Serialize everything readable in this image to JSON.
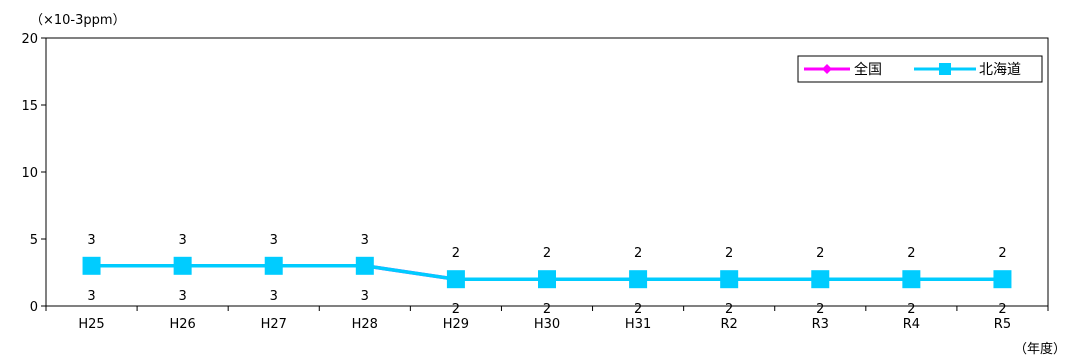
{
  "chart_data": {
    "type": "line",
    "y_unit_label": "（×10-3ppm）",
    "x_unit_label": "（年度）",
    "categories": [
      "H25",
      "H26",
      "H27",
      "H28",
      "H29",
      "H30",
      "H31",
      "R2",
      "R3",
      "R4",
      "R5"
    ],
    "ylim": [
      0,
      20
    ],
    "yticks": [
      0,
      5,
      10,
      15,
      20
    ],
    "grid": false,
    "legend_position": "top-right",
    "series": [
      {
        "name": "全国",
        "color": "#ff00ff",
        "marker": "diamond",
        "values": [
          3,
          3,
          3,
          3,
          2,
          2,
          2,
          2,
          2,
          2,
          2
        ],
        "label_position": "below"
      },
      {
        "name": "北海道",
        "color": "#00ccff",
        "marker": "square",
        "values": [
          3,
          3,
          3,
          3,
          2,
          2,
          2,
          2,
          2,
          2,
          2
        ],
        "label_position": "above"
      }
    ]
  }
}
